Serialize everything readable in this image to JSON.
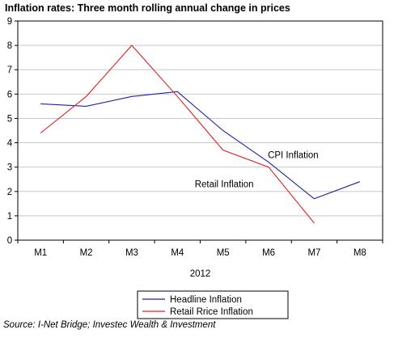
{
  "title": "Inflation rates: Three month rolling annual change in prices",
  "source": "Source: I-Net Bridge; Investec Wealth & Investment",
  "chart_data": {
    "type": "line",
    "categories": [
      "M1",
      "M2",
      "M3",
      "M4",
      "M5",
      "M6",
      "M7",
      "M8"
    ],
    "xlabel": "2012",
    "ylabel": "",
    "ylim": [
      0,
      9
    ],
    "yticks": [
      0,
      1,
      2,
      3,
      4,
      5,
      6,
      7,
      8,
      9
    ],
    "grid": "horizontal",
    "legend_position": "bottom",
    "series": [
      {
        "name": "Headline Inflation",
        "color": "#1f1fa0",
        "values": [
          5.6,
          5.5,
          5.9,
          6.1,
          4.5,
          3.2,
          1.7,
          2.4
        ]
      },
      {
        "name": "Retail Rrice Inflation",
        "color": "#e02020",
        "values": [
          4.4,
          5.9,
          8.0,
          5.9,
          3.7,
          3.0,
          0.7,
          null
        ]
      }
    ],
    "annotations": [
      {
        "text": "CPI Inflation",
        "x": "M6",
        "y": 3.5
      },
      {
        "text": "Retail Inflation",
        "x": "M5",
        "y": 2.3
      }
    ]
  }
}
